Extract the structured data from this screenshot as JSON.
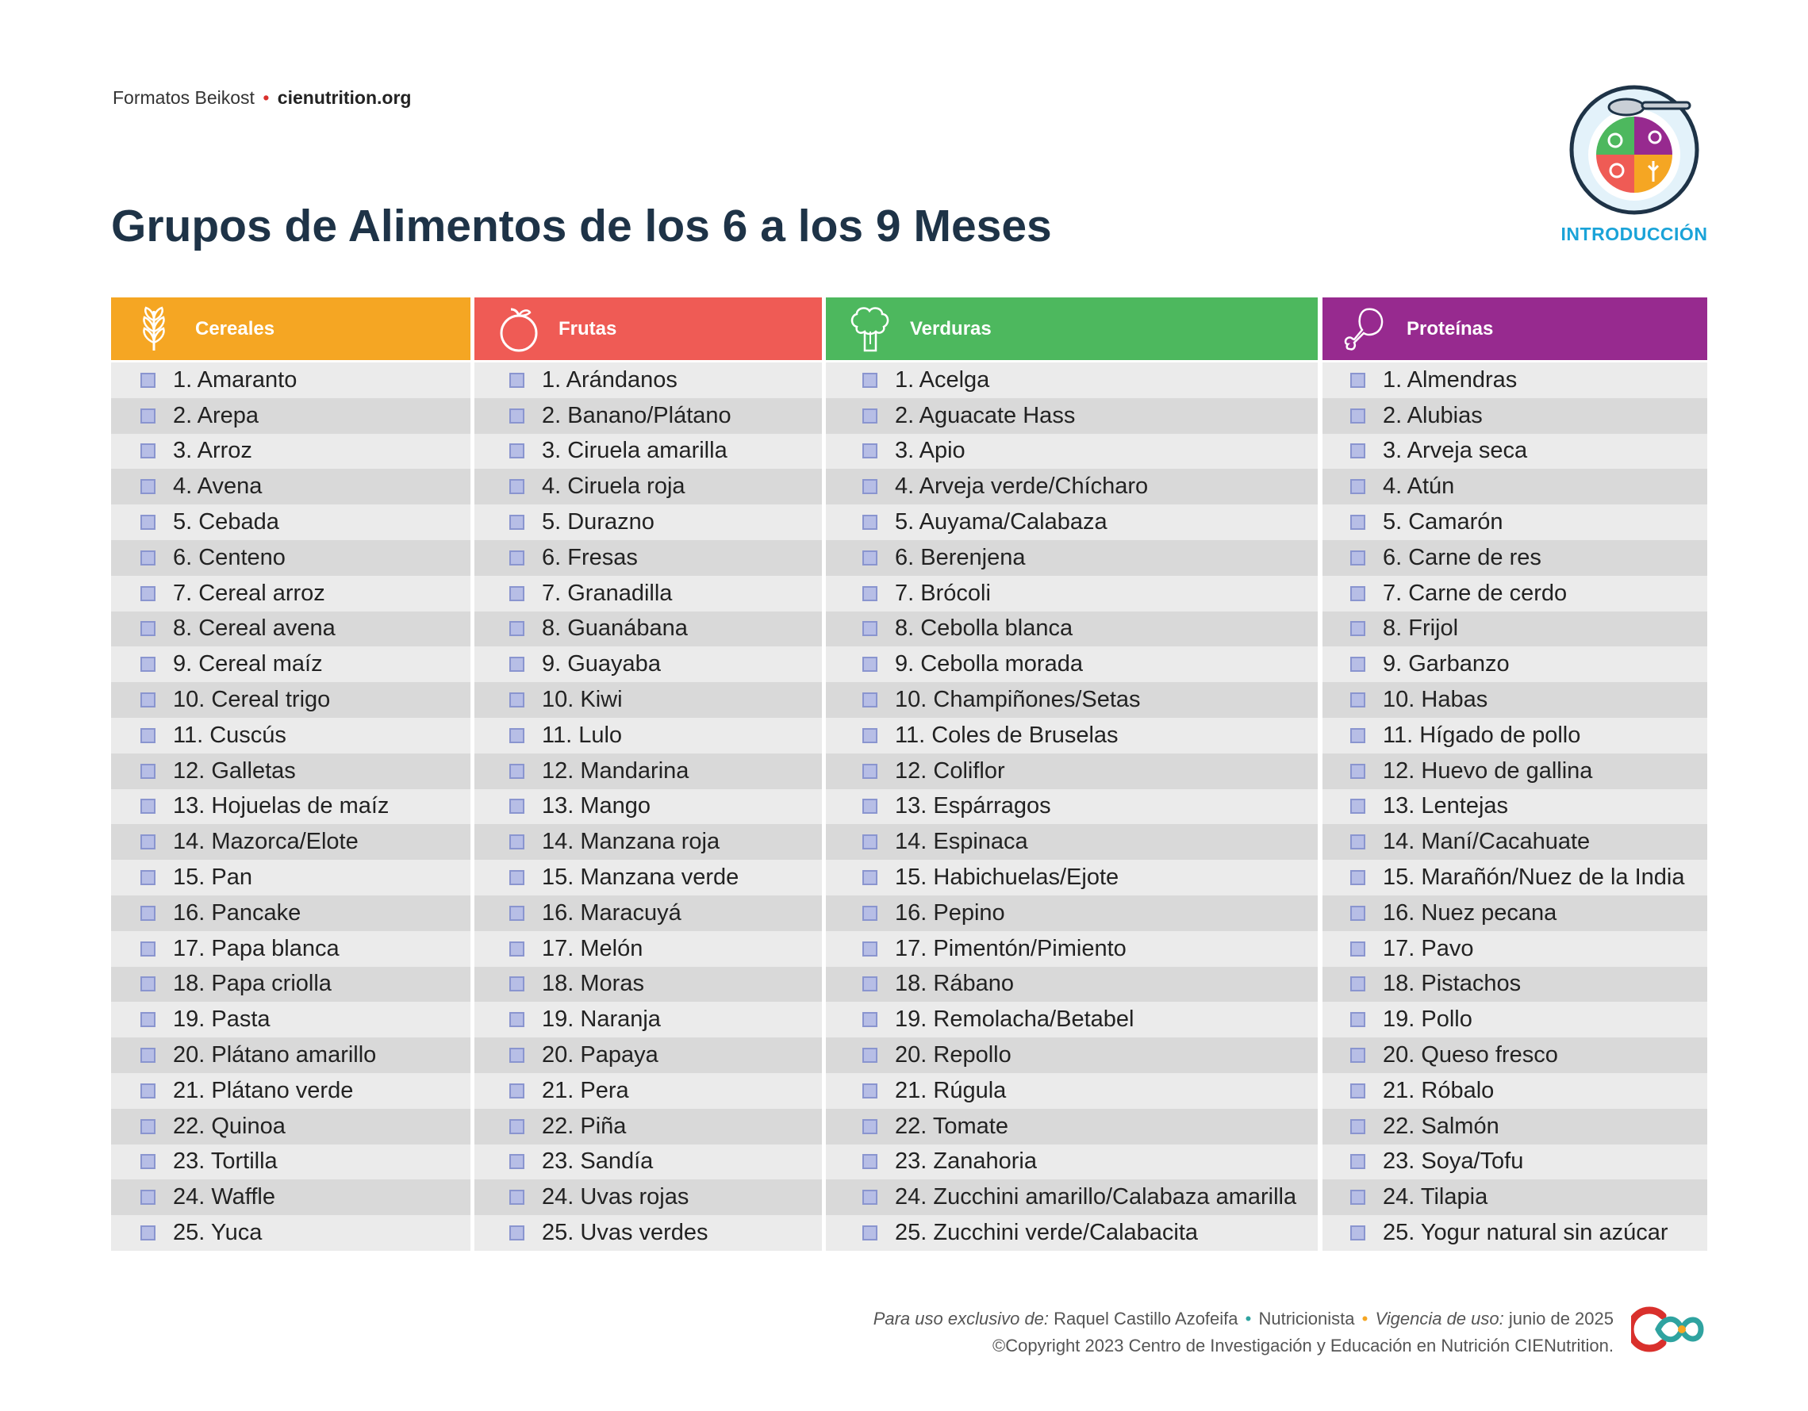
{
  "brand": {
    "prefix": "Formatos Beikost",
    "separator": "•",
    "site": "cienutrition.org"
  },
  "title": "Grupos de Alimentos de los 6 a los 9 Meses",
  "intro_label": "INTRODUCCIÓN",
  "colors": {
    "cereales": "#f5a623",
    "frutas": "#ef5b55",
    "verduras": "#4db85e",
    "proteinas": "#972a8f",
    "title": "#1e3347",
    "intro": "#1aa3d8"
  },
  "columns": [
    {
      "key": "cereales",
      "label": "Cereales",
      "icon": "wheat-icon",
      "items": [
        "1. Amaranto",
        "2. Arepa",
        "3. Arroz",
        "4. Avena",
        "5. Cebada",
        "6. Centeno",
        "7. Cereal arroz",
        "8. Cereal avena",
        "9. Cereal maíz",
        "10. Cereal trigo",
        "11. Cuscús",
        "12. Galletas",
        "13. Hojuelas de maíz",
        "14. Mazorca/Elote",
        "15. Pan",
        "16. Pancake",
        "17. Papa blanca",
        "18. Papa criolla",
        "19. Pasta",
        "20. Plátano amarillo",
        "21. Plátano verde",
        "22. Quinoa",
        "23. Tortilla",
        "24. Waffle",
        "25. Yuca"
      ]
    },
    {
      "key": "frutas",
      "label": "Frutas",
      "icon": "fruit-icon",
      "items": [
        "1. Arándanos",
        "2. Banano/Plátano",
        "3. Ciruela amarilla",
        "4. Ciruela roja",
        "5. Durazno",
        "6. Fresas",
        "7. Granadilla",
        "8. Guanábana",
        "9. Guayaba",
        "10. Kiwi",
        "11. Lulo",
        "12. Mandarina",
        "13. Mango",
        "14. Manzana roja",
        "15. Manzana verde",
        "16. Maracuyá",
        "17. Melón",
        "18. Moras",
        "19. Naranja",
        "20. Papaya",
        "21. Pera",
        "22. Piña",
        "23. Sandía",
        "24. Uvas rojas",
        "25. Uvas verdes"
      ]
    },
    {
      "key": "verduras",
      "label": "Verduras",
      "icon": "broccoli-icon",
      "items": [
        "1. Acelga",
        "2. Aguacate Hass",
        "3. Apio",
        "4. Arveja verde/Chícharo",
        "5. Auyama/Calabaza",
        "6. Berenjena",
        "7. Brócoli",
        "8. Cebolla blanca",
        "9. Cebolla morada",
        "10. Champiñones/Setas",
        "11. Coles de Bruselas",
        "12. Coliflor",
        "13. Espárragos",
        "14. Espinaca",
        "15. Habichuelas/Ejote",
        "16. Pepino",
        "17. Pimentón/Pimiento",
        "18. Rábano",
        "19. Remolacha/Betabel",
        "20. Repollo",
        "21. Rúgula",
        "22. Tomate",
        "23. Zanahoria",
        "24. Zucchini amarillo/Calabaza amarilla",
        "25. Zucchini verde/Calabacita"
      ]
    },
    {
      "key": "proteinas",
      "label": "Proteínas",
      "icon": "drumstick-icon",
      "items": [
        "1. Almendras",
        "2. Alubias",
        "3. Arveja seca",
        "4. Atún",
        "5. Camarón",
        "6. Carne de res",
        "7. Carne de cerdo",
        "8. Frijol",
        "9. Garbanzo",
        "10. Habas",
        "11. Hígado de pollo",
        "12. Huevo de gallina",
        "13. Lentejas",
        "14. Maní/Cacahuate",
        "15. Marañón/Nuez de la India",
        "16. Nuez pecana",
        "17. Pavo",
        "18. Pistachos",
        "19. Pollo",
        "20. Queso fresco",
        "21. Róbalo",
        "22. Salmón",
        "23. Soya/Tofu",
        "24. Tilapia",
        "25. Yogur natural sin azúcar"
      ]
    }
  ],
  "footer": {
    "exclusive_label": "Para uso exclusivo de:",
    "exclusive_name": "Raquel Castillo Azofeifa",
    "bullet1": "•",
    "role": "Nutricionista",
    "bullet2": "•",
    "validity_label": "Vigencia de uso:",
    "validity_value": "junio de 2025",
    "copyright": "©Copyright 2023 Centro de Investigación y Educación en Nutrición CIENutrition."
  }
}
